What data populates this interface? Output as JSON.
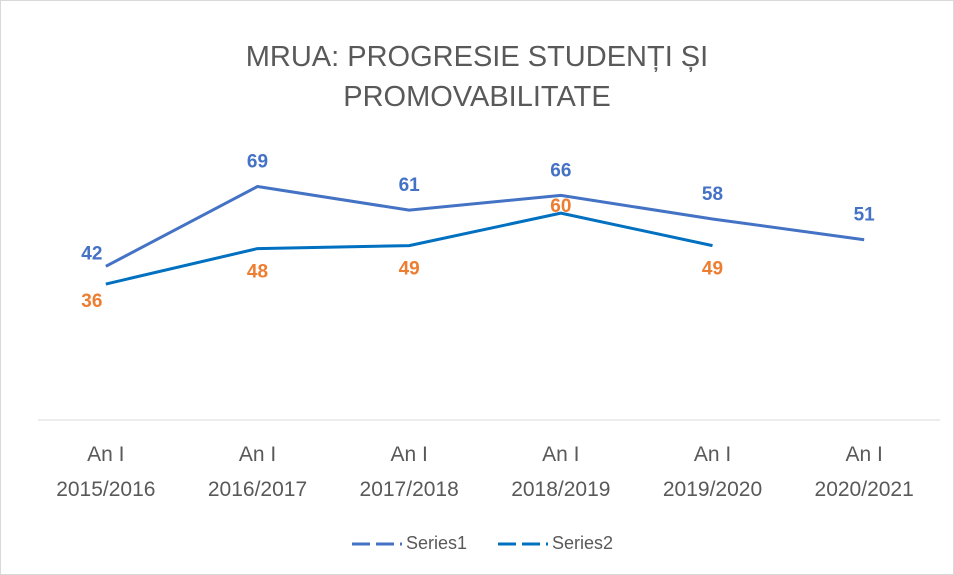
{
  "chart_data": {
    "type": "line",
    "title": "MRUA: PROGRESIE STUDENȚI ȘI PROMOVABILITATE",
    "categories": [
      "An I 2015/2016",
      "An I 2016/2017",
      "An I 2017/2018",
      "An I 2018/2019",
      "An I 2019/2020",
      "An I 2020/2021"
    ],
    "series": [
      {
        "name": "Series1",
        "color": "#4472c4",
        "label_color": "#4472c4",
        "values": [
          42,
          69,
          61,
          66,
          58,
          51
        ]
      },
      {
        "name": "Series2",
        "color": "#0070c0",
        "label_color": "#ed7d31",
        "values": [
          36,
          48,
          49,
          60,
          49,
          null
        ]
      }
    ],
    "ylim": [
      -10,
      80
    ],
    "grid": false,
    "legend": "bottom"
  }
}
